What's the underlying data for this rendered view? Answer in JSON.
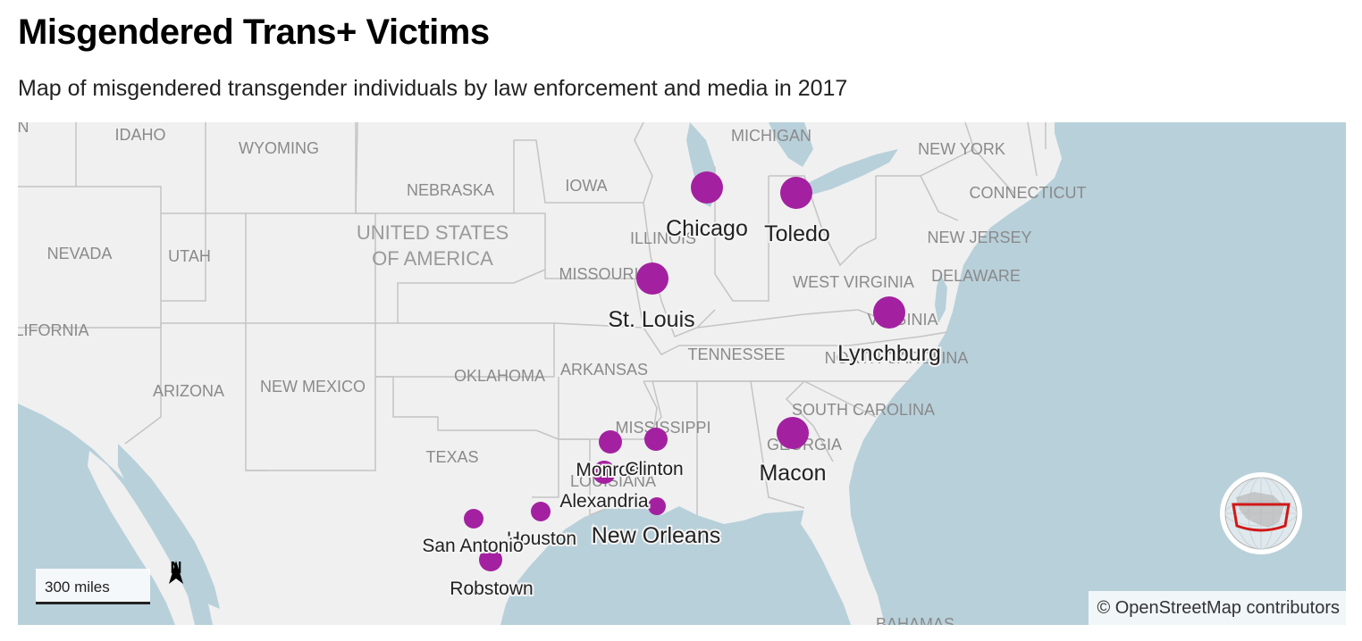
{
  "header": {
    "title": "Misgendered Trans+ Victims",
    "subtitle": "Map of misgendered transgender individuals by law enforcement and media in 2017"
  },
  "colors": {
    "marker": "#a321a0",
    "land": "#f0f0f0",
    "water": "#b8d0da",
    "border": "#c4c4c4"
  },
  "map": {
    "country_label": [
      "UNITED STATES",
      "OF AMERICA"
    ],
    "regions": [
      {
        "id": "idaho",
        "label": "IDAHO"
      },
      {
        "id": "wyoming",
        "label": "WYOMING"
      },
      {
        "id": "nebraska",
        "label": "NEBRASKA"
      },
      {
        "id": "iowa",
        "label": "IOWA"
      },
      {
        "id": "michigan",
        "label": "MICHIGAN"
      },
      {
        "id": "new-york",
        "label": "NEW YORK"
      },
      {
        "id": "connecticut",
        "label": "CONNECTICUT"
      },
      {
        "id": "nevada",
        "label": "NEVADA"
      },
      {
        "id": "utah",
        "label": "UTAH"
      },
      {
        "id": "illinois",
        "label": "ILLINOIS"
      },
      {
        "id": "new-jersey",
        "label": "NEW JERSEY"
      },
      {
        "id": "missouri",
        "label": "MISSOURI"
      },
      {
        "id": "west-virginia",
        "label": "WEST VIRGINIA"
      },
      {
        "id": "delaware",
        "label": "DELAWARE"
      },
      {
        "id": "california",
        "label": "LIFORNIA"
      },
      {
        "id": "virginia",
        "label": "VIRGINIA"
      },
      {
        "id": "tennessee",
        "label": "TENNESSEE"
      },
      {
        "id": "north-carolina",
        "label": "NORTH CAROLINA"
      },
      {
        "id": "oklahoma",
        "label": "OKLAHOMA"
      },
      {
        "id": "arkansas",
        "label": "ARKANSAS"
      },
      {
        "id": "arizona",
        "label": "ARIZONA"
      },
      {
        "id": "new-mexico",
        "label": "NEW MEXICO"
      },
      {
        "id": "south-carolina",
        "label": "SOUTH CAROLINA"
      },
      {
        "id": "mississippi",
        "label": "MISSISSIPPI"
      },
      {
        "id": "georgia",
        "label": "GEORGIA"
      },
      {
        "id": "texas",
        "label": "TEXAS"
      },
      {
        "id": "louisiana",
        "label": "LOUISIANA"
      },
      {
        "id": "bahamas",
        "label": "BAHAMAS"
      },
      {
        "id": "oregon-edge",
        "label": "N"
      }
    ],
    "cities": [
      {
        "id": "chicago",
        "label": "Chicago",
        "size": "large"
      },
      {
        "id": "toledo",
        "label": "Toledo",
        "size": "large"
      },
      {
        "id": "st-louis",
        "label": "St. Louis",
        "size": "large"
      },
      {
        "id": "lynchburg",
        "label": "Lynchburg",
        "size": "large"
      },
      {
        "id": "macon",
        "label": "Macon",
        "size": "large"
      },
      {
        "id": "monroe",
        "label": "Monroe",
        "size": "small"
      },
      {
        "id": "clinton",
        "label": "Clinton",
        "size": "small"
      },
      {
        "id": "alexandria",
        "label": "Alexandria",
        "size": "small"
      },
      {
        "id": "new-orleans",
        "label": "New Orleans",
        "size": "large"
      },
      {
        "id": "houston",
        "label": "Houston",
        "size": "small"
      },
      {
        "id": "san-antonio",
        "label": "San Antonio",
        "size": "small"
      },
      {
        "id": "robstown",
        "label": "Robstown",
        "size": "small"
      }
    ]
  },
  "scale": {
    "label": "300 miles"
  },
  "north": {
    "label": "N"
  },
  "attribution": "© OpenStreetMap contributors"
}
